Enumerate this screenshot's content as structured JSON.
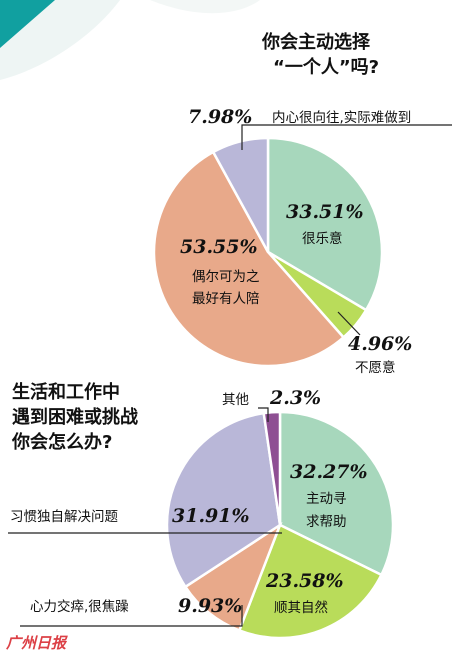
{
  "chart_data": [
    {
      "type": "pie",
      "title_lines": [
        "你会主动选择",
        "“一个人”吗?"
      ],
      "slices": [
        {
          "value": 33.51,
          "pct": "33.51%",
          "label_lines": [
            "很乐意"
          ],
          "color": "#a7d7bc"
        },
        {
          "value": 4.96,
          "pct": "4.96%",
          "label_lines": [
            "不愿意"
          ],
          "color": "#b9dc5a"
        },
        {
          "value": 53.55,
          "pct": "53.55%",
          "label_lines": [
            "偶尔可为之",
            "最好有人陪"
          ],
          "color": "#e8a98a"
        },
        {
          "value": 7.98,
          "pct": "7.98%",
          "label_lines": [
            "内心很向往,实际难做到"
          ],
          "color": "#b9b7d8"
        }
      ]
    },
    {
      "type": "pie",
      "title_lines": [
        "生活和工作中",
        "遇到困难或挑战",
        "你会怎么办?"
      ],
      "slices": [
        {
          "value": 32.27,
          "pct": "32.27%",
          "label_lines": [
            "主动寻",
            "求帮助"
          ],
          "color": "#a7d7bc"
        },
        {
          "value": 23.58,
          "pct": "23.58%",
          "label_lines": [
            "顺其自然"
          ],
          "color": "#b9dc5a"
        },
        {
          "value": 9.93,
          "pct": "9.93%",
          "label_lines": [
            "心力交瘁,很焦躁"
          ],
          "color": "#e8a98a"
        },
        {
          "value": 31.91,
          "pct": "31.91%",
          "label_lines": [
            "习惯独自解决问题"
          ],
          "color": "#b9b7d8"
        },
        {
          "value": 2.3,
          "pct": "2.3%",
          "label_lines": [
            "其他"
          ],
          "color": "#8e4f93"
        }
      ]
    }
  ],
  "brand": "广州日报"
}
